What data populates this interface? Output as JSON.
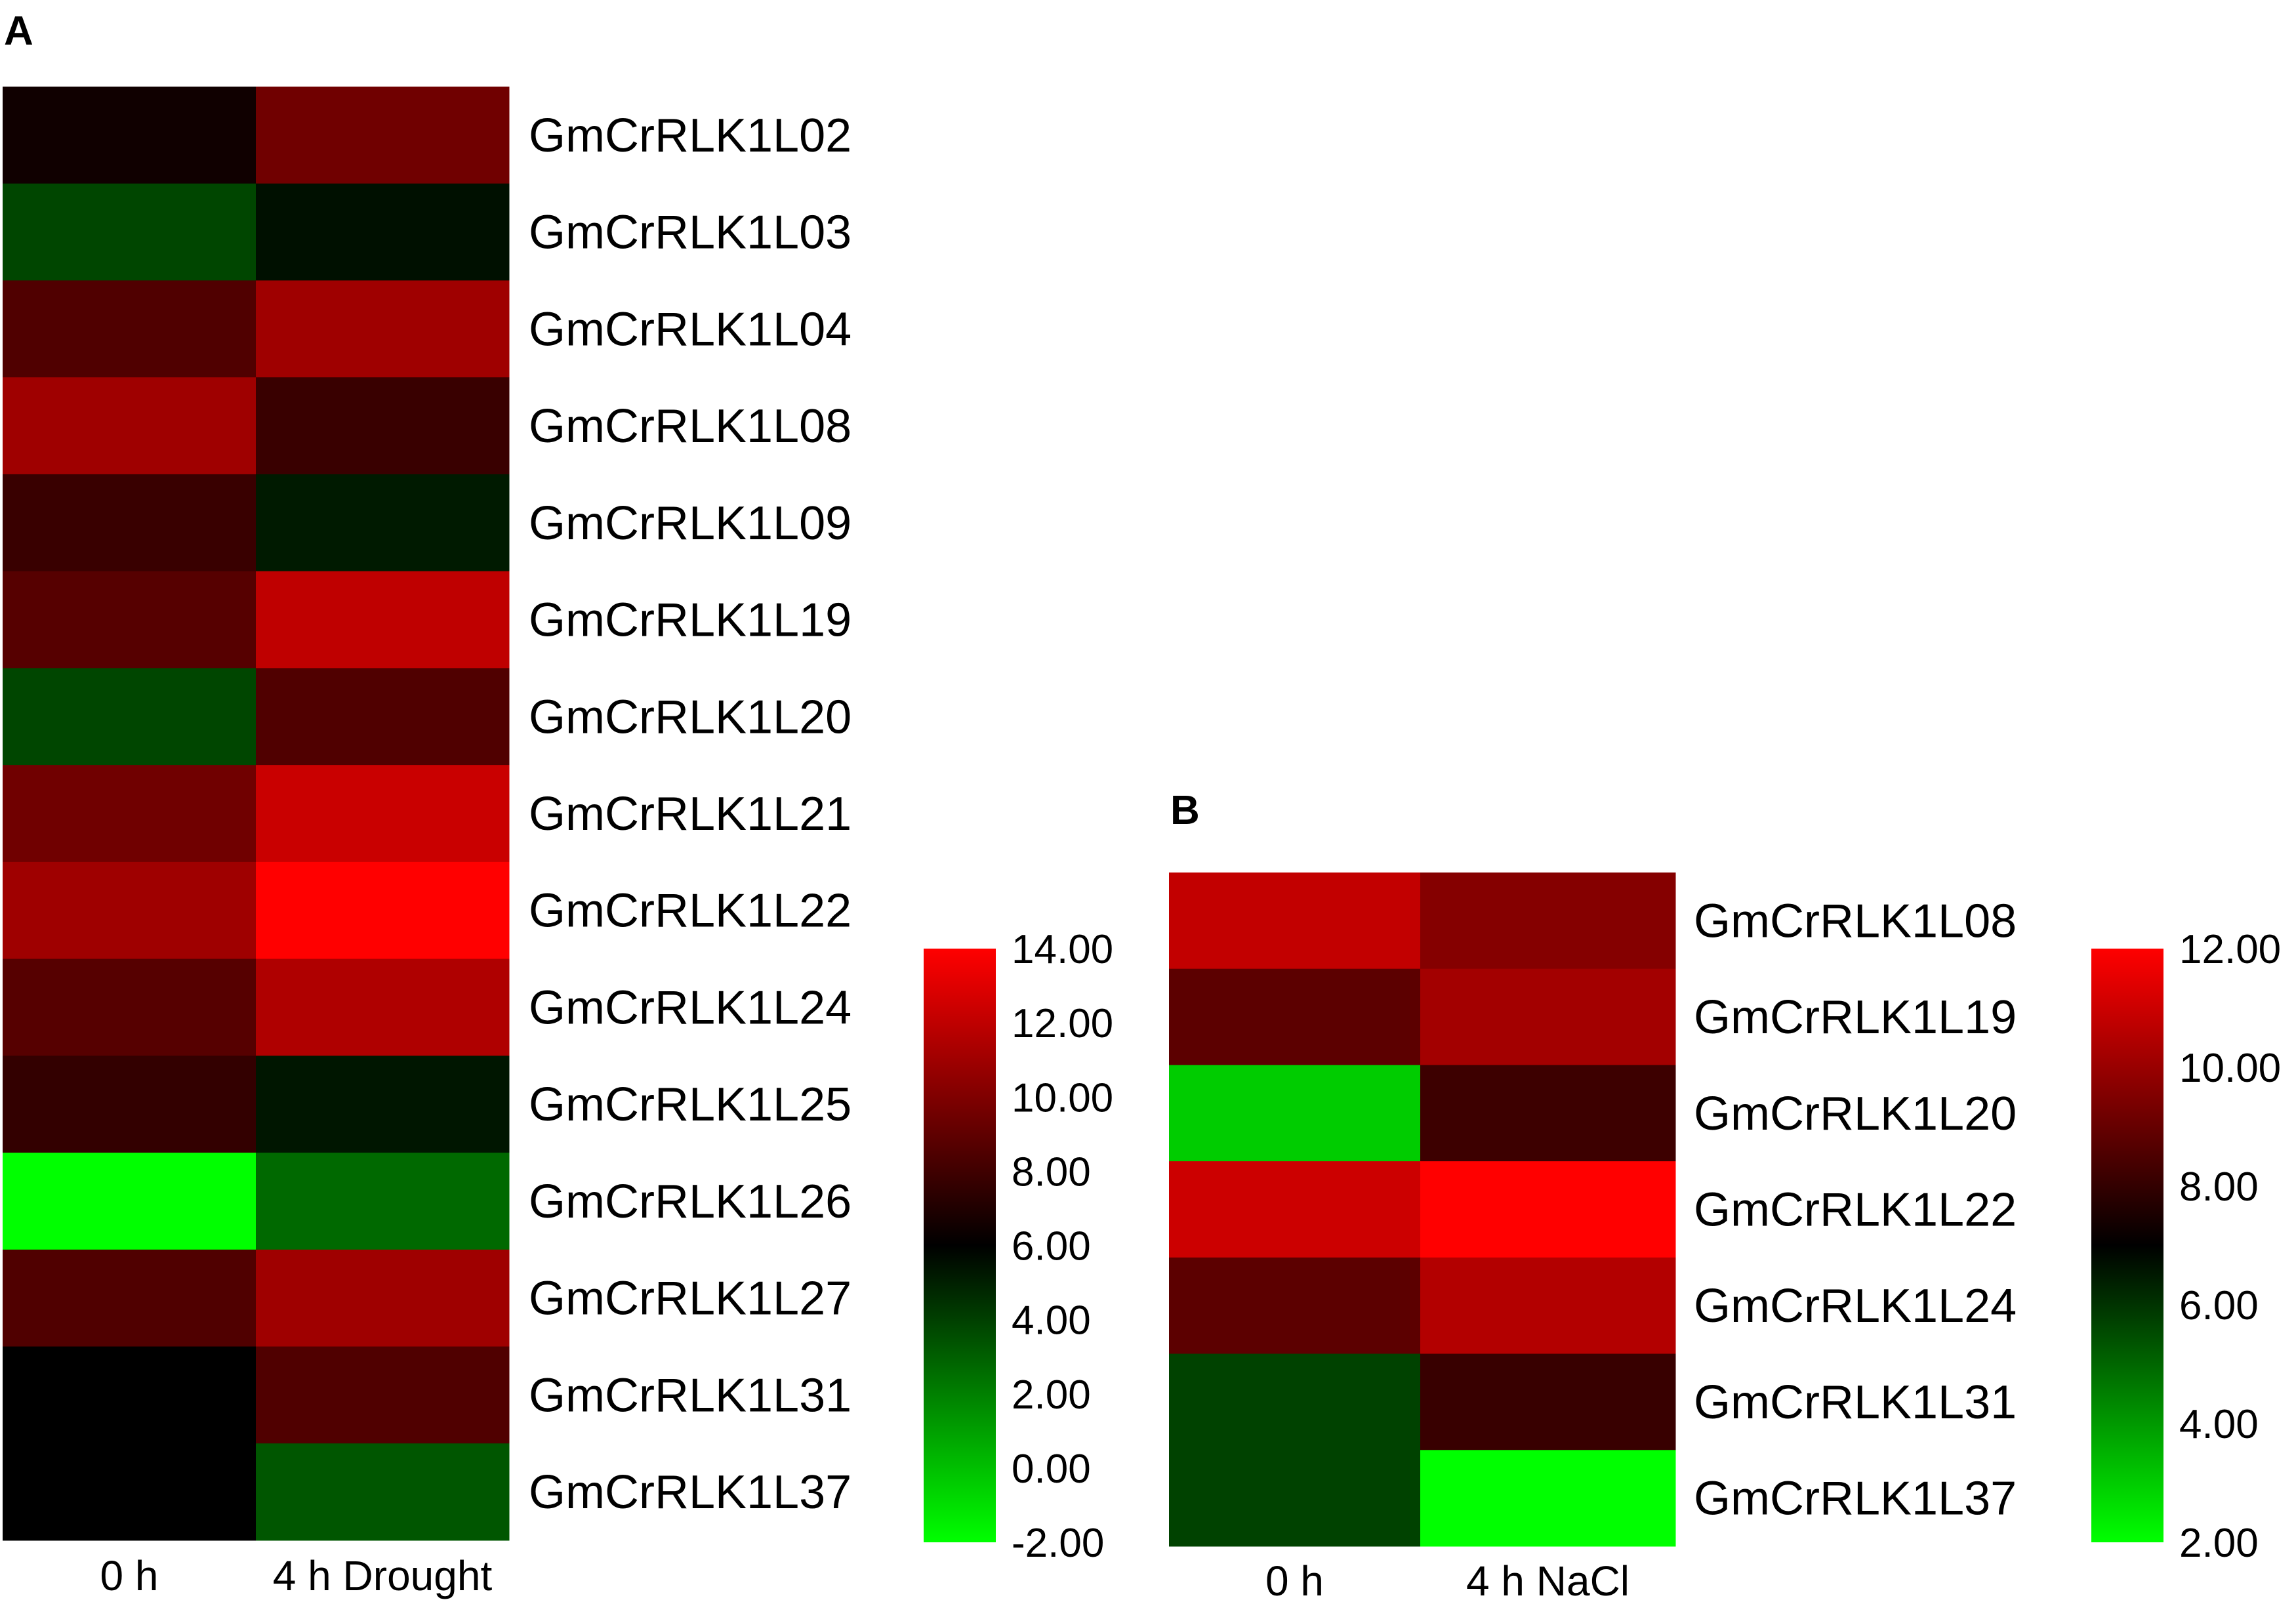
{
  "panels": [
    {
      "letter": "A",
      "max_label": "14.00"
    },
    {
      "letter": "B",
      "max_label": "12.00"
    }
  ],
  "chart_data": [
    {
      "type": "heatmap",
      "panel": "A",
      "columns": [
        "0 h",
        "4 h Drought"
      ],
      "rows": [
        "GmCrRLK1L02",
        "GmCrRLK1L03",
        "GmCrRLK1L04",
        "GmCrRLK1L08",
        "GmCrRLK1L09",
        "GmCrRLK1L19",
        "GmCrRLK1L20",
        "GmCrRLK1L21",
        "GmCrRLK1L22",
        "GmCrRLK1L24",
        "GmCrRLK1L25",
        "GmCrRLK1L26",
        "GmCrRLK1L27",
        "GmCrRLK1L31",
        "GmCrRLK1L37"
      ],
      "values": [
        [
          6.5,
          9.5
        ],
        [
          3.8,
          5.5
        ],
        [
          8.5,
          11.0
        ],
        [
          11.0,
          7.8
        ],
        [
          7.8,
          5.2
        ],
        [
          8.7,
          12.0
        ],
        [
          3.8,
          8.5
        ],
        [
          9.5,
          12.3
        ],
        [
          11.0,
          14.0
        ],
        [
          8.7,
          11.5
        ],
        [
          7.6,
          5.3
        ],
        [
          -2.0,
          2.7
        ],
        [
          8.5,
          11.0
        ],
        [
          6.0,
          8.5
        ],
        [
          6.0,
          3.3
        ]
      ],
      "colorbar": {
        "min": -2.0,
        "max": 14.0,
        "ticks": [
          "14.00",
          "12.00",
          "10.00",
          "8.00",
          "6.00",
          "4.00",
          "2.00",
          "0.00",
          "-2.00"
        ],
        "colors": [
          "#ff0000",
          "#000000",
          "#00ff00"
        ]
      }
    },
    {
      "type": "heatmap",
      "panel": "B",
      "columns": [
        "0 h",
        "4 h NaCl"
      ],
      "rows": [
        "GmCrRLK1L08",
        "GmCrRLK1L19",
        "GmCrRLK1L20",
        "GmCrRLK1L22",
        "GmCrRLK1L24",
        "GmCrRLK1L31",
        "GmCrRLK1L37"
      ],
      "values": [
        [
          10.8,
          9.6
        ],
        [
          8.8,
          10.2
        ],
        [
          3.0,
          8.2
        ],
        [
          11.0,
          12.0
        ],
        [
          8.8,
          10.5
        ],
        [
          5.7,
          8.1
        ],
        [
          5.7,
          2.0
        ]
      ],
      "colorbar": {
        "min": 2.0,
        "max": 12.0,
        "ticks": [
          "12.00",
          "10.00",
          "8.00",
          "6.00",
          "4.00",
          "2.00"
        ],
        "colors": [
          "#ff0000",
          "#000000",
          "#00ff00"
        ]
      }
    }
  ]
}
